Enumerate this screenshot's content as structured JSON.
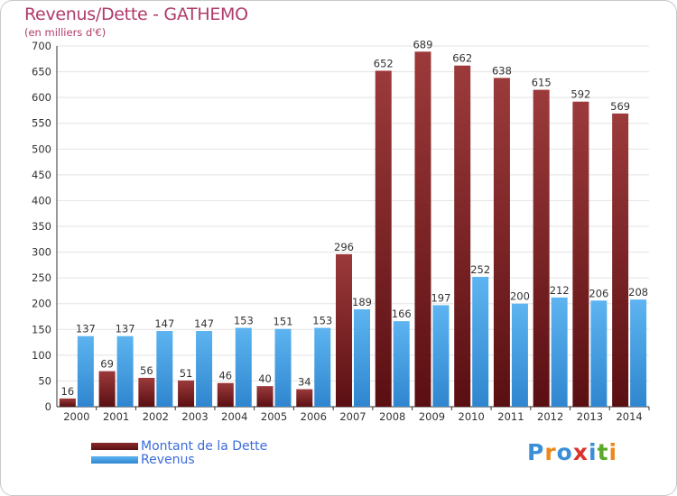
{
  "title": "Revenus/Dette - GATHEMO",
  "subtitle": "(en milliers d'€)",
  "logo": {
    "text": "Proxiti",
    "colors": [
      "#3a8fd8",
      "#e98a1b",
      "#3a8fd8",
      "#d9342b",
      "#3a8fd8",
      "#5aaa2a",
      "#e98a1b"
    ]
  },
  "colors": {
    "debt": "#7a1f22",
    "revenue": "#4aa5e8",
    "title": "#b03a6a",
    "legend_text": "#3b6cdc"
  },
  "chart_data": {
    "type": "bar",
    "title": "Revenus/Dette - GATHEMO",
    "subtitle": "(en milliers d'€)",
    "categories": [
      "2000",
      "2001",
      "2002",
      "2003",
      "2004",
      "2005",
      "2006",
      "2007",
      "2008",
      "2009",
      "2010",
      "2011",
      "2012",
      "2013",
      "2014"
    ],
    "series": [
      {
        "name": "Montant de la Dette",
        "values": [
          16,
          69,
          56,
          51,
          46,
          40,
          34,
          296,
          652,
          689,
          662,
          638,
          615,
          592,
          569
        ]
      },
      {
        "name": "Revenus",
        "values": [
          137,
          137,
          147,
          147,
          153,
          151,
          153,
          189,
          166,
          197,
          252,
          200,
          212,
          206,
          208
        ]
      }
    ],
    "ylim": [
      0,
      700
    ],
    "yticks": [
      0,
      50,
      100,
      150,
      200,
      250,
      300,
      350,
      400,
      450,
      500,
      550,
      600,
      650,
      700
    ],
    "grid": true,
    "legend": "bottom-left",
    "data_labels": true
  }
}
